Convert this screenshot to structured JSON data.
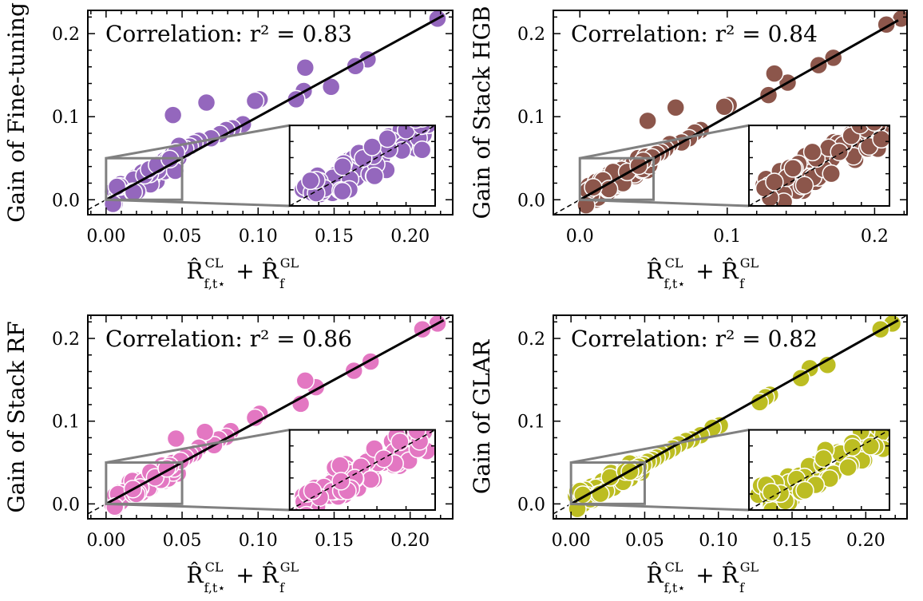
{
  "figure": {
    "xlabel": "R̂_{f,t⋆}^{CL} + R̂_f^{GL}",
    "xlabel_parts": {
      "hat": "R̂",
      "sub1": "f,t⋆",
      "sup1": "CL",
      "plus": "+",
      "sub2": "f",
      "sup2": "GL"
    }
  },
  "chart_data": [
    {
      "type": "scatter",
      "ylabel": "Gain of Fine-tuning",
      "annotation": "Correlation:  r² = 0.83",
      "r2": 0.83,
      "color": "#9467bd",
      "xlim": [
        -0.012,
        0.228
      ],
      "ylim": [
        -0.018,
        0.228
      ],
      "xticks": [
        0.0,
        0.05,
        0.1,
        0.15,
        0.2
      ],
      "xticklabels": [
        "0.00",
        "0.05",
        "0.10",
        "0.15",
        "0.20"
      ],
      "yticks": [
        0.0,
        0.1,
        0.2
      ],
      "yticklabels": [
        "0.0",
        "0.1",
        "0.2"
      ],
      "inset_region": {
        "x": [
          0.0,
          0.05
        ],
        "y": [
          0.0,
          0.05
        ]
      },
      "seed": 3,
      "x": [
        0.218,
        0.172,
        0.164,
        0.148,
        0.131,
        0.13,
        0.125,
        0.101,
        0.098,
        0.09,
        0.083,
        0.079,
        0.075,
        0.069,
        0.066,
        0.061,
        0.058,
        0.055,
        0.052,
        0.048,
        0.046,
        0.044,
        0.042
      ],
      "y": [
        0.218,
        0.169,
        0.161,
        0.136,
        0.159,
        0.131,
        0.121,
        0.121,
        0.119,
        0.091,
        0.086,
        0.084,
        0.079,
        0.074,
        0.117,
        0.071,
        0.068,
        0.064,
        0.061,
        0.065,
        0.057,
        0.102,
        0.049
      ]
    },
    {
      "type": "scatter",
      "ylabel": "Gain of Stack HGB",
      "annotation": "Correlation:  r² = 0.84",
      "r2": 0.84,
      "color": "#8c564b",
      "xlim": [
        -0.018,
        0.222
      ],
      "ylim": [
        -0.018,
        0.228
      ],
      "xticks": [
        0.0,
        0.1,
        0.2
      ],
      "xticklabels": [
        "0.0",
        "0.1",
        "0.2"
      ],
      "yticks": [
        0.0,
        0.1,
        0.2
      ],
      "yticklabels": [
        "0.0",
        "0.1",
        "0.2"
      ],
      "inset_region": {
        "x": [
          0.0,
          0.05
        ],
        "y": [
          0.0,
          0.05
        ]
      },
      "seed": 7,
      "x": [
        0.218,
        0.208,
        0.172,
        0.162,
        0.141,
        0.132,
        0.128,
        0.101,
        0.098,
        0.082,
        0.078,
        0.074,
        0.069,
        0.065,
        0.061,
        0.058,
        0.055,
        0.052,
        0.049,
        0.046,
        0.043,
        0.04
      ],
      "y": [
        0.218,
        0.211,
        0.171,
        0.162,
        0.141,
        0.152,
        0.126,
        0.114,
        0.112,
        0.084,
        0.081,
        0.074,
        0.069,
        0.111,
        0.067,
        0.061,
        0.057,
        0.055,
        0.051,
        0.095,
        0.047,
        0.041
      ]
    },
    {
      "type": "scatter",
      "ylabel": "Gain of Stack RF",
      "annotation": "Correlation:  r² = 0.86",
      "r2": 0.86,
      "color": "#e377c2",
      "xlim": [
        -0.012,
        0.228
      ],
      "ylim": [
        -0.018,
        0.228
      ],
      "xticks": [
        0.0,
        0.05,
        0.1,
        0.15,
        0.2
      ],
      "xticklabels": [
        "0.00",
        "0.05",
        "0.10",
        "0.15",
        "0.20"
      ],
      "yticks": [
        0.0,
        0.1,
        0.2
      ],
      "yticklabels": [
        "0.0",
        "0.1",
        "0.2"
      ],
      "inset_region": {
        "x": [
          0.0,
          0.05
        ],
        "y": [
          0.0,
          0.05
        ]
      },
      "seed": 11,
      "x": [
        0.218,
        0.208,
        0.174,
        0.163,
        0.138,
        0.131,
        0.128,
        0.101,
        0.098,
        0.082,
        0.079,
        0.074,
        0.071,
        0.065,
        0.061,
        0.058,
        0.055,
        0.052,
        0.049,
        0.046,
        0.042,
        0.04
      ],
      "y": [
        0.218,
        0.211,
        0.172,
        0.161,
        0.141,
        0.149,
        0.121,
        0.109,
        0.104,
        0.088,
        0.081,
        0.078,
        0.071,
        0.087,
        0.068,
        0.061,
        0.059,
        0.056,
        0.052,
        0.079,
        0.046,
        0.043
      ]
    },
    {
      "type": "scatter",
      "ylabel": "Gain of GLAR",
      "annotation": "Correlation:  r² = 0.82",
      "r2": 0.82,
      "color": "#bcbd22",
      "xlim": [
        -0.012,
        0.228
      ],
      "ylim": [
        -0.018,
        0.228
      ],
      "xticks": [
        0.0,
        0.05,
        0.1,
        0.15,
        0.2
      ],
      "xticklabels": [
        "0.00",
        "0.05",
        "0.10",
        "0.15",
        "0.20"
      ],
      "yticks": [
        0.0,
        0.1,
        0.2
      ],
      "yticklabels": [
        "0.0",
        "0.1",
        "0.2"
      ],
      "inset_region": {
        "x": [
          0.0,
          0.05
        ],
        "y": [
          0.0,
          0.05
        ]
      },
      "seed": 17,
      "x": [
        0.218,
        0.21,
        0.174,
        0.162,
        0.156,
        0.135,
        0.132,
        0.128,
        0.101,
        0.096,
        0.088,
        0.082,
        0.078,
        0.073,
        0.069,
        0.065,
        0.061,
        0.058,
        0.055,
        0.052,
        0.049,
        0.046,
        0.043,
        0.04
      ],
      "y": [
        0.218,
        0.211,
        0.168,
        0.164,
        0.152,
        0.132,
        0.129,
        0.123,
        0.095,
        0.092,
        0.083,
        0.078,
        0.076,
        0.072,
        0.067,
        0.063,
        0.06,
        0.056,
        0.053,
        0.051,
        0.047,
        0.045,
        0.042,
        0.039
      ]
    }
  ]
}
